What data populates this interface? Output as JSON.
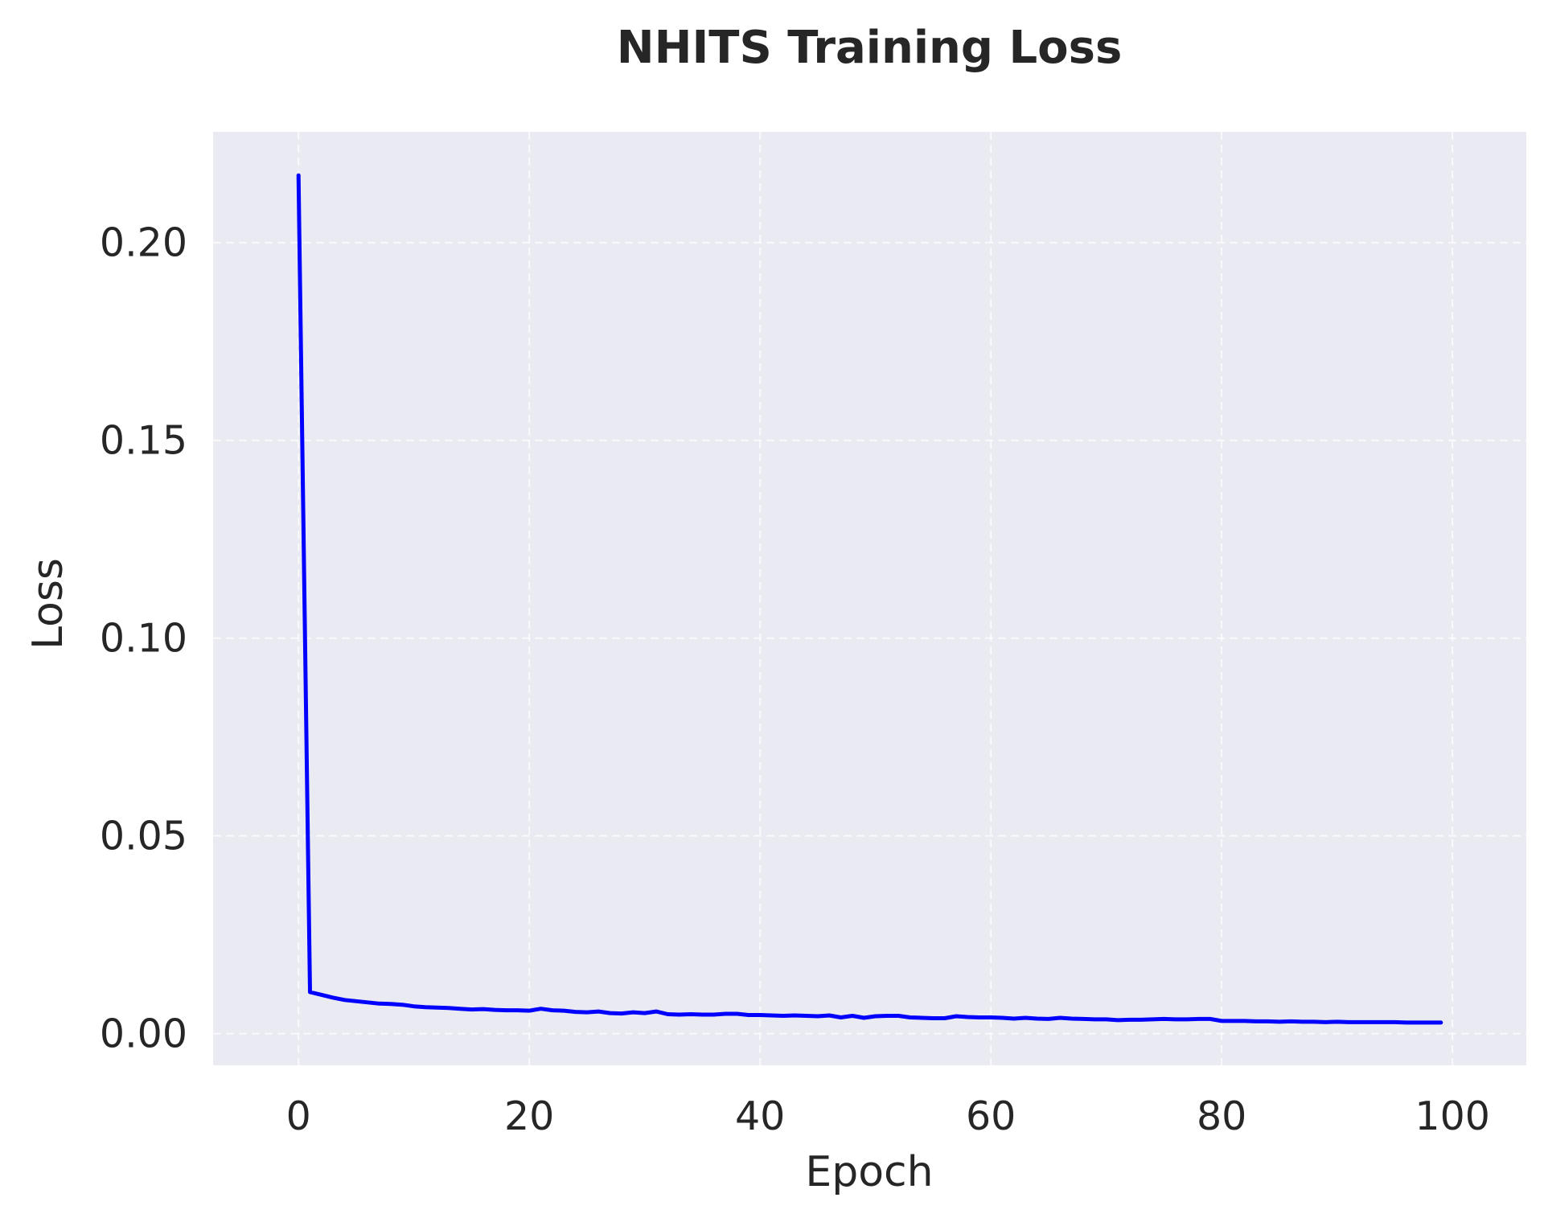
{
  "chart_data": {
    "type": "line",
    "title": "NHITS Training Loss",
    "xlabel": "Epoch",
    "ylabel": "Loss",
    "xlim": [
      -7.4,
      106.4
    ],
    "ylim": [
      -0.008,
      0.228
    ],
    "x_ticks": [
      0,
      20,
      40,
      60,
      80,
      100
    ],
    "x_tick_labels": [
      "0",
      "20",
      "40",
      "60",
      "80",
      "100"
    ],
    "y_ticks": [
      0.0,
      0.05,
      0.1,
      0.15,
      0.2
    ],
    "y_tick_labels": [
      "0.00",
      "0.05",
      "0.10",
      "0.15",
      "0.20"
    ],
    "grid": true,
    "legend": "none",
    "colors": {
      "plot_background": "#eaeaf2",
      "grid": "#ffffff",
      "line": "#0000ff"
    },
    "series": [
      {
        "x": [
          0,
          1,
          2,
          3,
          4,
          5,
          6,
          7,
          8,
          9,
          10,
          11,
          12,
          13,
          14,
          15,
          16,
          17,
          18,
          19,
          20,
          21,
          22,
          23,
          24,
          25,
          26,
          27,
          28,
          29,
          30,
          31,
          32,
          33,
          34,
          35,
          36,
          37,
          38,
          39,
          40,
          41,
          42,
          43,
          44,
          45,
          46,
          47,
          48,
          49,
          50,
          51,
          52,
          53,
          54,
          55,
          56,
          57,
          58,
          59,
          60,
          61,
          62,
          63,
          64,
          65,
          66,
          67,
          68,
          69,
          70,
          71,
          72,
          73,
          74,
          75,
          76,
          77,
          78,
          79,
          80,
          81,
          82,
          83,
          84,
          85,
          86,
          87,
          88,
          89,
          90,
          91,
          92,
          93,
          94,
          95,
          96,
          97,
          98,
          99
        ],
        "values": [
          0.217,
          0.0105,
          0.0098,
          0.0091,
          0.0085,
          0.0082,
          0.0079,
          0.0076,
          0.0075,
          0.0073,
          0.0069,
          0.0067,
          0.0066,
          0.0065,
          0.0063,
          0.0061,
          0.0062,
          0.006,
          0.0059,
          0.0059,
          0.0058,
          0.0063,
          0.0059,
          0.0058,
          0.0055,
          0.0054,
          0.0056,
          0.0052,
          0.0051,
          0.0054,
          0.0052,
          0.0056,
          0.0049,
          0.0048,
          0.0049,
          0.0048,
          0.0048,
          0.005,
          0.005,
          0.0047,
          0.0047,
          0.0046,
          0.0045,
          0.0046,
          0.0045,
          0.0044,
          0.0046,
          0.0041,
          0.0045,
          0.004,
          0.0044,
          0.0045,
          0.0045,
          0.0041,
          0.004,
          0.0039,
          0.0039,
          0.0044,
          0.0042,
          0.0041,
          0.0041,
          0.004,
          0.0038,
          0.004,
          0.0038,
          0.0037,
          0.004,
          0.0038,
          0.0037,
          0.0036,
          0.0036,
          0.0034,
          0.0035,
          0.0035,
          0.0036,
          0.0037,
          0.0036,
          0.0036,
          0.0037,
          0.0037,
          0.0032,
          0.0032,
          0.0032,
          0.0031,
          0.0031,
          0.003,
          0.0031,
          0.003,
          0.003,
          0.0029,
          0.003,
          0.0029,
          0.0029,
          0.0029,
          0.0029,
          0.0029,
          0.0028,
          0.0028,
          0.0028,
          0.0028
        ]
      }
    ]
  }
}
